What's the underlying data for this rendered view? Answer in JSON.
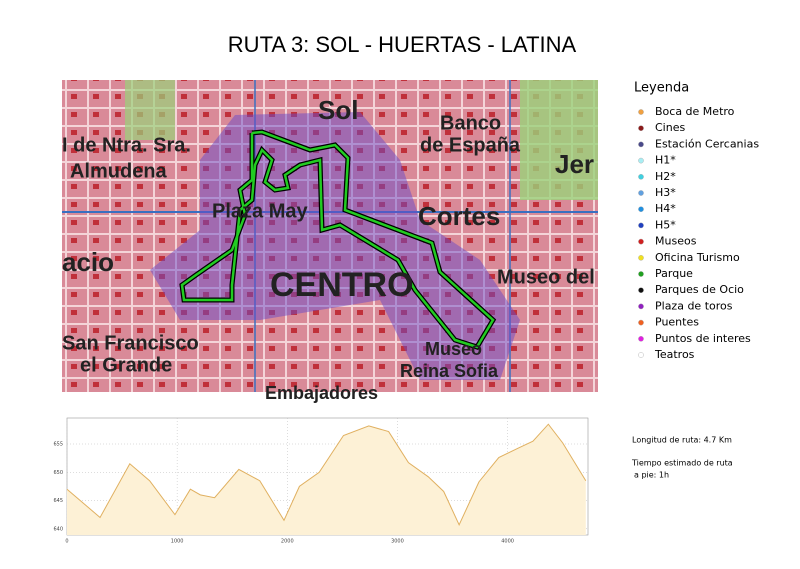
{
  "title": "RUTA 3: SOL - HUERTAS - LATINA",
  "map": {
    "labels": [
      "Sol",
      "Banco",
      "de España",
      "Jer",
      "I de Ntra. Sra.",
      "Almudena",
      "Plaza May",
      "Cortes",
      "acio",
      "CENTRO",
      "Museo del",
      "San Francisco",
      "el Grande",
      "Museo",
      "Reina Sofia",
      "Embajadores"
    ]
  },
  "legend": {
    "title": "Leyenda",
    "items": [
      {
        "name": "Boca de Metro",
        "color": "#f0a040"
      },
      {
        "name": "Cines",
        "color": "#8b1a1a"
      },
      {
        "name": "Estación Cercanias",
        "color": "#4a4a8a"
      },
      {
        "name": "H1*",
        "color": "#a8eef4"
      },
      {
        "name": "H2*",
        "color": "#40d0e0"
      },
      {
        "name": "H3*",
        "color": "#60a0e0"
      },
      {
        "name": "H4*",
        "color": "#2090e0"
      },
      {
        "name": "H5*",
        "color": "#2040c0"
      },
      {
        "name": "Museos",
        "color": "#d02020"
      },
      {
        "name": "Oficina Turismo",
        "color": "#f0e020"
      },
      {
        "name": "Parque",
        "color": "#20a020"
      },
      {
        "name": "Parques de Ocio",
        "color": "#101010"
      },
      {
        "name": "Plaza de toros",
        "color": "#9020c0"
      },
      {
        "name": "Puentes",
        "color": "#f06020"
      },
      {
        "name": "Puntos de interes",
        "color": "#e020e0"
      },
      {
        "name": "Teatros",
        "color": "#ffffff"
      }
    ]
  },
  "info": [
    "Longitud de ruta: 4.7 Km",
    "Tiempo estimado de ruta",
    "a pie: 1h"
  ],
  "chart_data": {
    "type": "area",
    "color": "#fdf1d6",
    "line_color": "#e0b060",
    "grid": true,
    "x": [
      0,
      300,
      570,
      750,
      980,
      1120,
      1210,
      1340,
      1560,
      1750,
      1970,
      2110,
      2290,
      2510,
      2740,
      2920,
      3100,
      3280,
      3420,
      3560,
      3740,
      3920,
      4100,
      4230,
      4370,
      4500,
      4710
    ],
    "values": [
      647,
      642,
      651.5,
      648.5,
      642.5,
      647,
      646,
      645.5,
      650.5,
      648.5,
      641.5,
      647.5,
      650,
      656.5,
      658.2,
      657.2,
      651.7,
      649.2,
      646.6,
      640.7,
      648.3,
      652.6,
      654.3,
      655.5,
      658.5,
      655.2,
      648.5
    ],
    "xlim": [
      0,
      4730
    ],
    "ylim": [
      638.9,
      659.6
    ],
    "xticks": [
      0,
      1000,
      2000,
      3000,
      4000
    ],
    "yticks": [
      640,
      645,
      650,
      655
    ]
  }
}
